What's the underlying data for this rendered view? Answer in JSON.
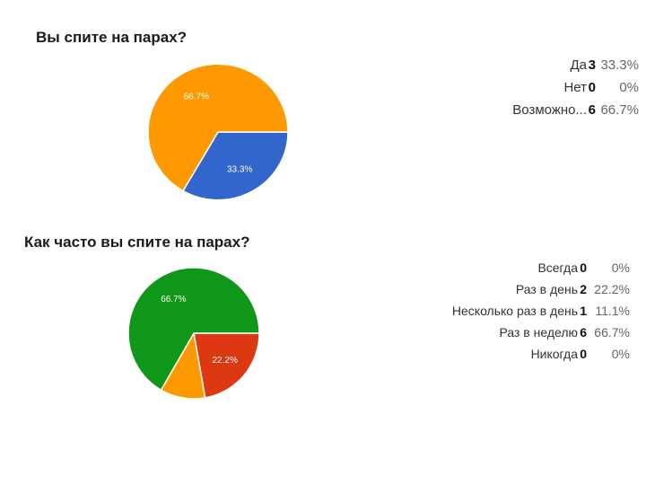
{
  "chart_data": [
    {
      "type": "pie",
      "title": "Вы спите на парах?",
      "categories": [
        "Да",
        "Нет",
        "Возможно..."
      ],
      "values": [
        3,
        0,
        6
      ],
      "percentages": [
        "33.3%",
        "0%",
        "66.7%"
      ],
      "slice_labels": [
        "33.3%",
        "",
        "66.7%"
      ],
      "colors": [
        "#3366cc",
        "#dc3912",
        "#ff9900"
      ],
      "legend_position": "right"
    },
    {
      "type": "pie",
      "title": "Как часто вы спите на парах?",
      "categories": [
        "Всегда",
        "Раз в день",
        "Несколько раз в день",
        "Раз в неделю",
        "Никогда"
      ],
      "values": [
        0,
        2,
        1,
        6,
        0
      ],
      "percentages": [
        "0%",
        "22.2%",
        "11.1%",
        "66.7%",
        "0%"
      ],
      "slice_labels": [
        "",
        "22.2%",
        "",
        "66.7%",
        ""
      ],
      "colors": [
        "#3366cc",
        "#dc3912",
        "#ff9900",
        "#109618",
        "#990099"
      ],
      "legend_position": "right"
    }
  ]
}
